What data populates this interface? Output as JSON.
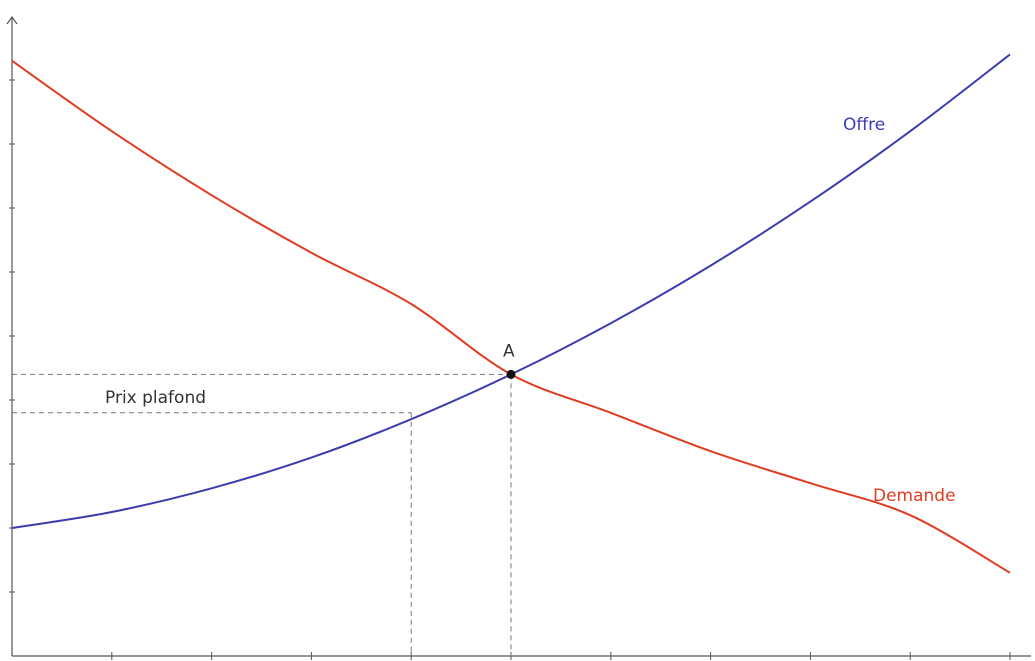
{
  "chart_data": {
    "type": "line",
    "title": "",
    "xlabel": "",
    "ylabel": "",
    "xlim": [
      0,
      10
    ],
    "ylim": [
      0,
      10
    ],
    "grid": false,
    "legend": "none",
    "x_ticks": [
      1,
      2,
      3,
      4,
      5,
      6,
      7,
      8,
      9,
      10
    ],
    "y_ticks": [
      1,
      2,
      3,
      4,
      5,
      6,
      7,
      8,
      9
    ],
    "series": [
      {
        "name": "Offre",
        "color": "#3c3cae",
        "x": [
          0,
          1,
          2,
          3,
          4,
          5,
          6,
          7,
          8,
          9,
          10
        ],
        "y": [
          2.0,
          2.25,
          2.62,
          3.1,
          3.7,
          4.4,
          5.2,
          6.1,
          7.1,
          8.2,
          9.4
        ]
      },
      {
        "name": "Demande",
        "color": "#e03c22",
        "x": [
          0,
          1,
          2,
          3,
          4,
          5,
          6,
          7,
          8,
          9,
          10
        ],
        "y": [
          9.3,
          8.2,
          7.2,
          6.3,
          5.5,
          4.4,
          3.8,
          3.2,
          2.7,
          2.2,
          1.3
        ]
      }
    ],
    "equilibrium": {
      "label": "A",
      "x": 5,
      "y": 4.4
    },
    "price_ceiling": {
      "label": "Prix plafond",
      "y": 3.8,
      "x_supply": 4
    }
  }
}
